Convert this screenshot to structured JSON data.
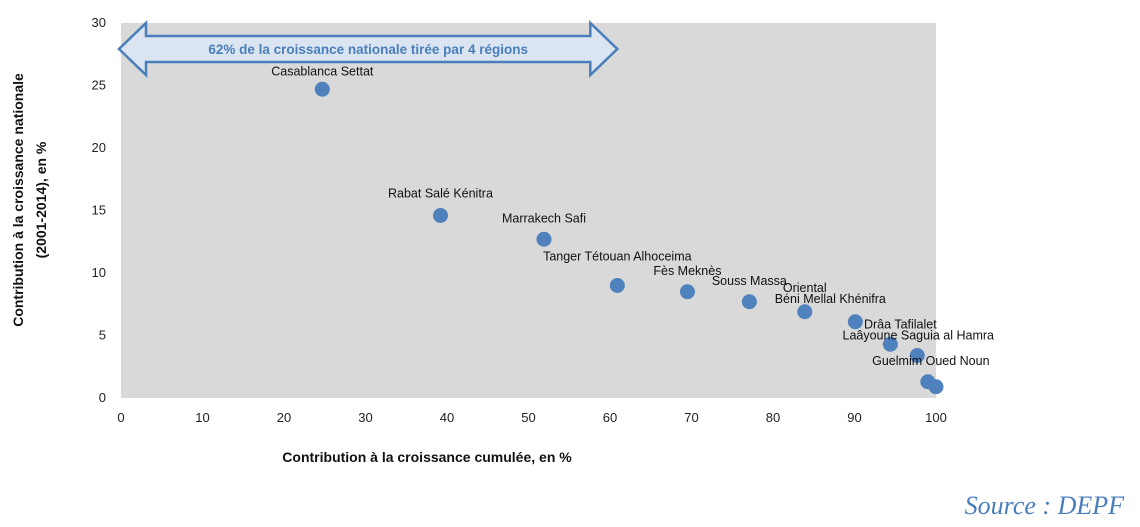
{
  "chart_data": {
    "type": "scatter",
    "title": "",
    "xlabel": "Contribution à la croissance cumulée, en %",
    "ylabel_line1": "Contribution à la croissance  nationale",
    "ylabel_line2": "(2001-2014), en %",
    "xlim": [
      0,
      100
    ],
    "ylim": [
      0,
      30
    ],
    "x_ticks": [
      0,
      10,
      20,
      30,
      40,
      50,
      60,
      70,
      80,
      90,
      100
    ],
    "y_ticks": [
      0,
      5,
      10,
      15,
      20,
      25,
      30
    ],
    "grid": false,
    "point_color": "#4f81bd",
    "plot_bg": "#d9d9d9",
    "annotation": {
      "text": "62% de la croissance nationale tirée par 4 régions",
      "x_start": 0,
      "x_end": 62,
      "color": "#4a7ebb"
    },
    "points": [
      {
        "label": "Casablanca Settat",
        "x": 24.7,
        "y": 24.7
      },
      {
        "label": "Rabat Salé Kénitra",
        "x": 39.2,
        "y": 14.6
      },
      {
        "label": "Marrakech Safi",
        "x": 51.9,
        "y": 12.7
      },
      {
        "label": "Tanger Tétouan Alhoceima",
        "x": 60.9,
        "y": 9.0
      },
      {
        "label": "Fès Meknès",
        "x": 69.5,
        "y": 8.5
      },
      {
        "label": "Souss Massa",
        "x": 77.1,
        "y": 7.7
      },
      {
        "label": "Oriental",
        "x": 83.9,
        "y": 6.9
      },
      {
        "label": "Béni Mellal Khénifra",
        "x": 90.1,
        "y": 6.1
      },
      {
        "label": "Drâa Tafilalet",
        "x": 94.4,
        "y": 4.3
      },
      {
        "label": "Laâyoune Saguia al Hamra",
        "x": 97.7,
        "y": 3.4
      },
      {
        "label": "Guelmim Oued Noun",
        "x": 99.0,
        "y": 1.3
      },
      {
        "label": "",
        "x": 100.0,
        "y": 0.9
      }
    ]
  },
  "source": "Source : DEPF"
}
